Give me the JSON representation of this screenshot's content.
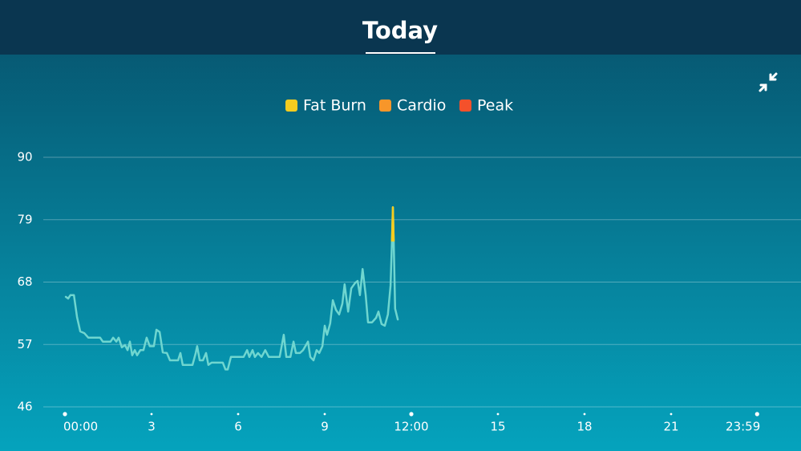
{
  "chart_data": {
    "type": "line",
    "title": "Today",
    "legend": [
      {
        "name": "Fat Burn",
        "color": "#f5cc1f"
      },
      {
        "name": "Cardio",
        "color": "#f7962a"
      },
      {
        "name": "Peak",
        "color": "#f4512b"
      }
    ],
    "xlim": [
      0,
      24
    ],
    "xticks": [
      {
        "value": 0,
        "label": "00:00"
      },
      3,
      6,
      9,
      {
        "value": 12,
        "label": "12:00"
      },
      15,
      18,
      21,
      {
        "value": 23.98,
        "label": "23:59"
      }
    ],
    "ylim": [
      46,
      90
    ],
    "yticks": [
      46,
      57,
      68,
      79,
      90
    ],
    "grid": true,
    "series": [
      {
        "color": "#6fd6d0",
        "x": [
          0.03,
          0.11,
          0.19,
          0.31,
          0.42,
          0.53,
          0.67,
          0.81,
          1.22,
          1.31,
          1.58,
          1.67,
          1.78,
          1.86,
          1.97,
          2.08,
          2.17,
          2.25,
          2.33,
          2.42,
          2.5,
          2.61,
          2.72,
          2.83,
          2.94,
          3.08,
          3.17,
          3.28,
          3.39,
          3.53,
          3.64,
          3.92,
          4.0,
          4.08,
          4.42,
          4.53,
          4.58,
          4.67,
          4.78,
          4.89,
          4.97,
          5.08,
          5.47,
          5.56,
          5.64,
          5.75,
          6.19,
          6.31,
          6.39,
          6.5,
          6.58,
          6.69,
          6.81,
          6.94,
          7.06,
          7.44,
          7.58,
          7.67,
          7.81,
          7.92,
          8.0,
          8.14,
          8.25,
          8.42,
          8.5,
          8.61,
          8.72,
          8.81,
          8.92,
          9.0,
          9.08,
          9.19,
          9.28,
          9.39,
          9.5,
          9.61,
          9.69,
          9.81,
          9.92,
          10.06,
          10.14,
          10.22,
          10.31,
          10.42,
          10.5,
          10.64,
          10.78,
          10.86,
          10.97,
          11.08,
          11.19,
          11.28,
          11.33,
          11.36,
          11.39,
          11.44,
          11.53
        ],
        "values": [
          65.4,
          65.1,
          65.7,
          65.7,
          61.8,
          59.3,
          59.0,
          58.2,
          58.2,
          57.5,
          57.5,
          58.2,
          57.5,
          58.2,
          56.5,
          56.9,
          56.0,
          57.5,
          55.1,
          56.0,
          55.1,
          56.0,
          56.0,
          58.2,
          56.7,
          56.7,
          59.6,
          59.2,
          55.6,
          55.5,
          54.2,
          54.2,
          55.5,
          53.4,
          53.4,
          55.5,
          56.7,
          54.2,
          54.2,
          55.5,
          53.4,
          53.8,
          53.8,
          52.6,
          52.6,
          54.8,
          54.8,
          56.0,
          54.8,
          56.0,
          54.8,
          55.5,
          54.8,
          56.0,
          54.8,
          54.8,
          58.7,
          54.8,
          54.8,
          57.5,
          55.5,
          55.5,
          56.0,
          57.5,
          54.8,
          54.2,
          56.0,
          55.5,
          56.7,
          60.3,
          58.7,
          60.7,
          64.8,
          63.1,
          62.3,
          64.2,
          67.6,
          62.8,
          66.9,
          67.9,
          68.2,
          65.7,
          70.3,
          65.7,
          60.9,
          60.9,
          61.7,
          62.8,
          60.6,
          60.3,
          62.3,
          67.4,
          75.3,
          81.2,
          75.3,
          63.3,
          61.4
        ]
      },
      {
        "color": "#f5cc1f",
        "x": [
          11.33,
          11.36,
          11.39
        ],
        "values": [
          75.3,
          81.2,
          75.3
        ]
      }
    ]
  }
}
